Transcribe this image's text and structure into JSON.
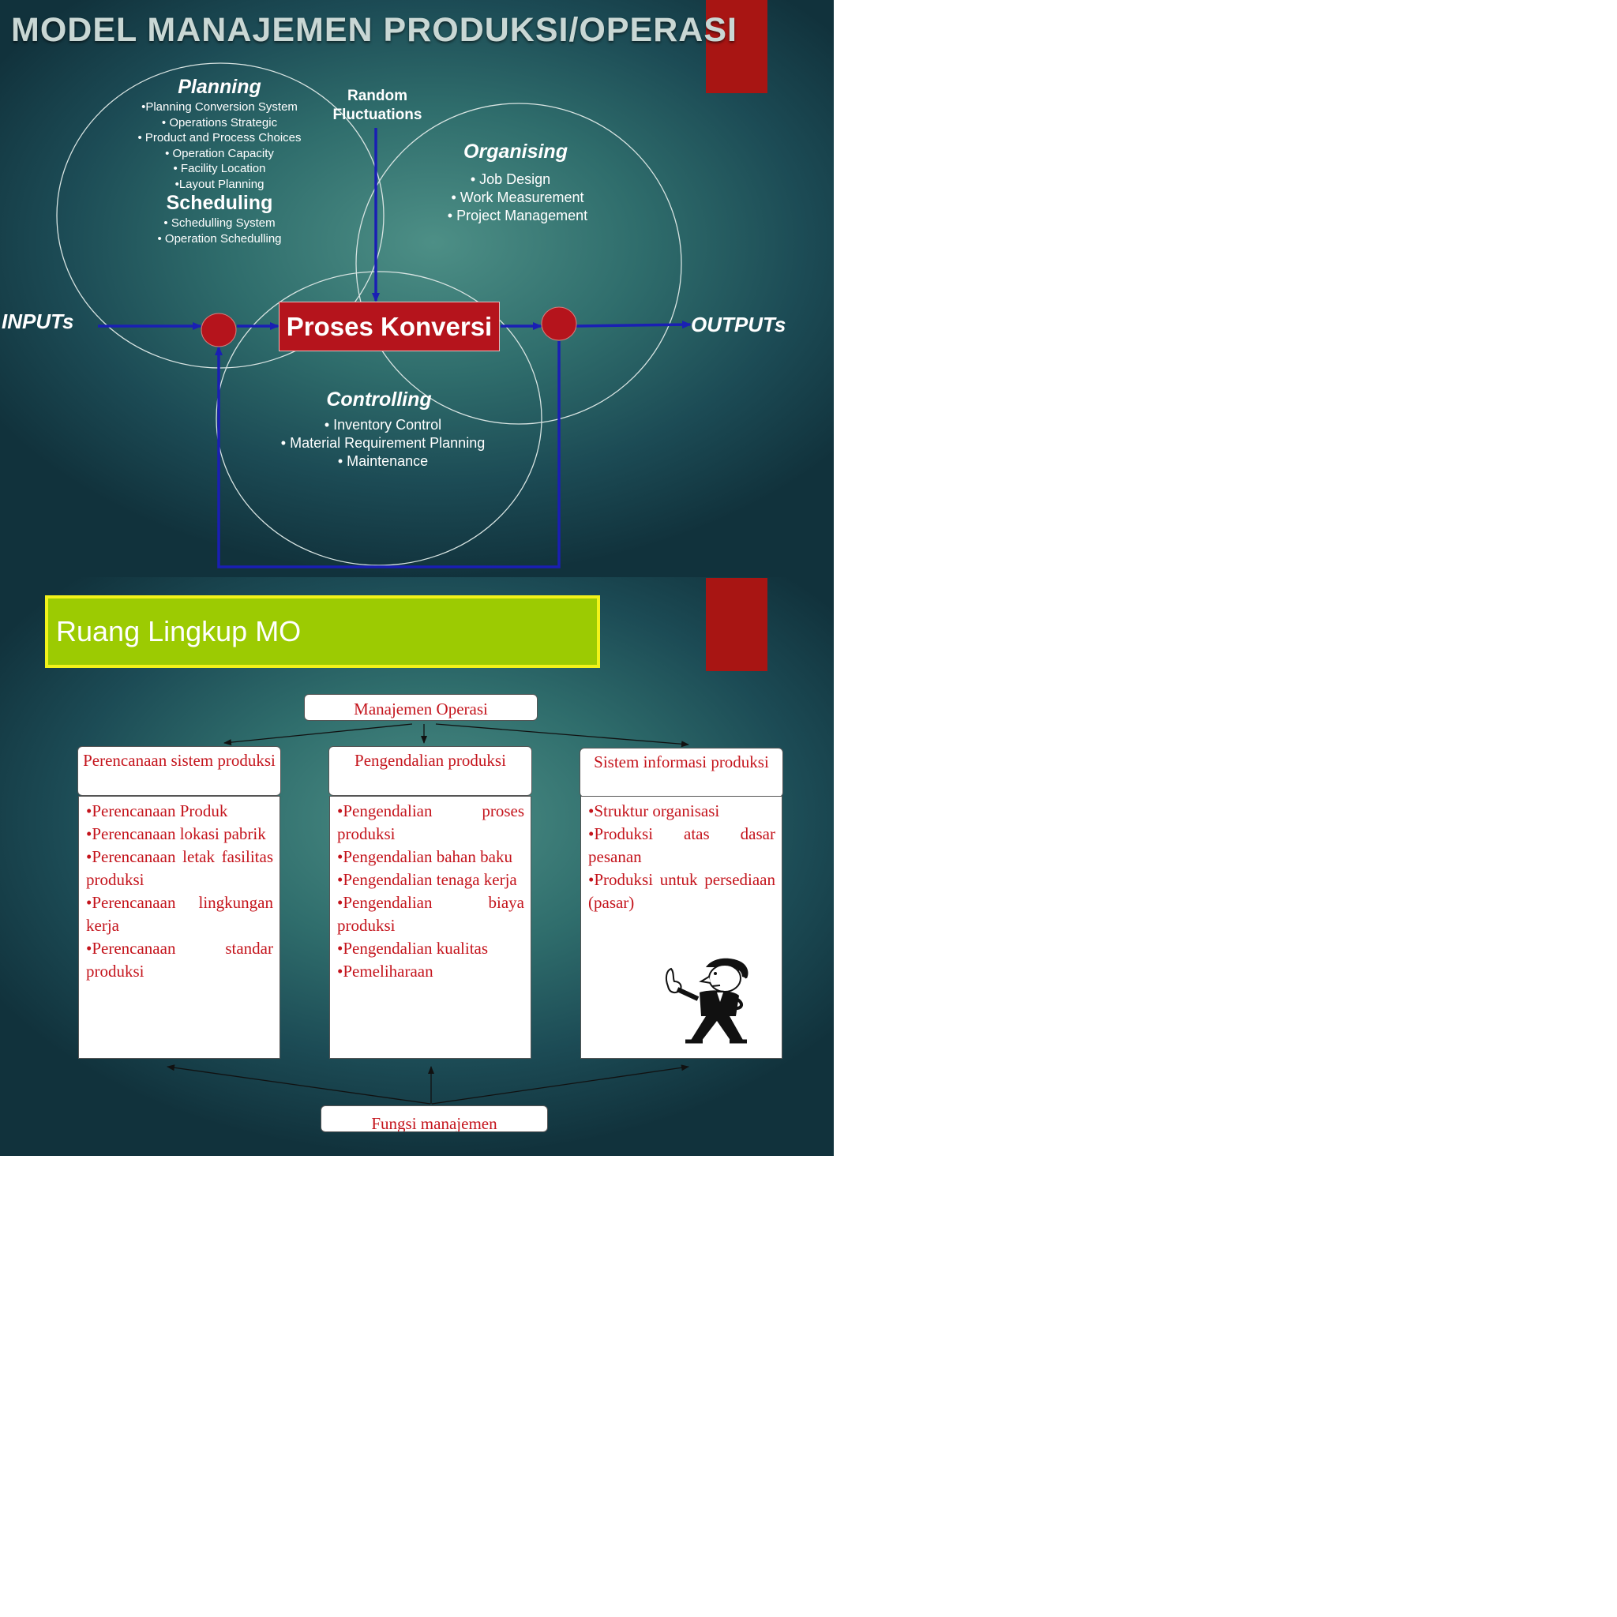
{
  "slide1": {
    "title": "MODEL MANAJEMEN PRODUKSI/OPERASI",
    "planning": {
      "heading": "Planning",
      "items": [
        "•Planning Conversion System",
        "• Operations Strategic",
        "• Product and Process Choices",
        "• Operation Capacity",
        "• Facility Location",
        "•Layout Planning"
      ]
    },
    "scheduling": {
      "heading": "Scheduling",
      "items": [
        "• Schedulling System",
        "• Operation Schedulling"
      ]
    },
    "random_fluctuations": [
      "Random",
      "Fluctuations"
    ],
    "organising": {
      "heading": "Organising",
      "items": [
        "• Job Design",
        "• Work Measurement",
        "•  Project Management"
      ]
    },
    "inputs_label": "INPUTs",
    "process_label": "Proses Konversi",
    "outputs_label": "OUTPUTs",
    "controlling": {
      "heading": "Controlling",
      "items": [
        "• Inventory Control",
        "• Material Requirement Planning",
        "• Maintenance"
      ]
    },
    "colors": {
      "accent_red": "#a81513",
      "arrow_blue": "#1a1fb4",
      "node_red": "#b5141c",
      "circle_line": "#d8e4e2"
    }
  },
  "slide2": {
    "title": "Ruang Lingkup MO",
    "root": "Manajemen Operasi",
    "columns": [
      {
        "heading": "Perencanaan sistem produksi",
        "items": [
          "•Perencanaan Produk",
          "•Perencanaan lokasi pabrik",
          "•Perencanaan letak fasilitas produksi",
          "•Perencanaan lingkungan kerja",
          "•Perencanaan standar produksi"
        ]
      },
      {
        "heading": "Pengendalian produksi",
        "items": [
          "•Pengendalian proses produksi",
          "•Pengendalian bahan baku",
          "•Pengendalian tenaga kerja",
          "•Pengendalian biaya produksi",
          "•Pengendalian kualitas",
          "•Pemeliharaan"
        ]
      },
      {
        "heading": "Sistem informasi produksi",
        "items": [
          "•Struktur organisasi",
          "•Produksi atas dasar pesanan",
          "•Produksi untuk persediaan (pasar)"
        ]
      }
    ],
    "bottom": "Fungsi manajemen",
    "colors": {
      "banner_green": "#9ccb02",
      "banner_border": "#f2f21a",
      "text_red": "#c4141c"
    },
    "illustration": "thinking-man-clipart"
  }
}
